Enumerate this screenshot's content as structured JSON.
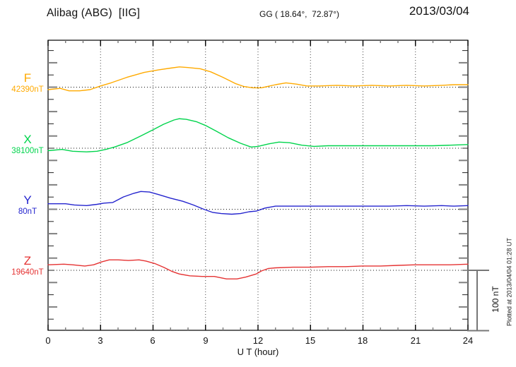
{
  "header": {
    "station_title": "Alibag (ABG)  [IIG]",
    "coords": "GG ( 18.64°,  72.87°)",
    "date": "2013/03/04"
  },
  "axis": {
    "x_tick_labels": [
      "0",
      "3",
      "6",
      "9",
      "12",
      "15",
      "18",
      "21",
      "24"
    ],
    "x_axis_label": "U T (hour)"
  },
  "scale_bar": {
    "label": "100 nT",
    "nT": 100
  },
  "plot_note": "Plotted at 2013/04/04 01:28 UT",
  "chart_data": {
    "type": "line",
    "title": "Alibag (ABG) [IIG] magnetogram",
    "date": "2013/03/04",
    "xlabel": "U T (hour)",
    "x_range": [
      0,
      24
    ],
    "x_major_tick_hours": 3,
    "x_minor_tick_hours": 1,
    "grid": "dotted vertical lines every 3 hours; dotted horizontal baseline per component",
    "legend_position": "left margin, one colored label per trace",
    "scale_bar_nT": 100,
    "offset_unit": "nT relative to component baseline",
    "series": [
      {
        "name": "F",
        "baseline_label": "42390nT",
        "baseline_nT": 42390,
        "color": "#FFAA00",
        "points": [
          [
            0,
            -4
          ],
          [
            0.7,
            -2
          ],
          [
            1.2,
            -6
          ],
          [
            1.8,
            -6
          ],
          [
            2.4,
            -4
          ],
          [
            3,
            2
          ],
          [
            3.6,
            7
          ],
          [
            4.5,
            16
          ],
          [
            5.5,
            24
          ],
          [
            6.3,
            28
          ],
          [
            7,
            31
          ],
          [
            7.5,
            33
          ],
          [
            8,
            32
          ],
          [
            8.7,
            30
          ],
          [
            9.3,
            25
          ],
          [
            10,
            16
          ],
          [
            10.7,
            6
          ],
          [
            11.2,
            1
          ],
          [
            11.7,
            -1
          ],
          [
            12.2,
            -1
          ],
          [
            13,
            4
          ],
          [
            13.6,
            7
          ],
          [
            14.2,
            5
          ],
          [
            14.8,
            2
          ],
          [
            15.5,
            2
          ],
          [
            16.5,
            3
          ],
          [
            17.5,
            2
          ],
          [
            18.5,
            3
          ],
          [
            19.5,
            2
          ],
          [
            20.5,
            3
          ],
          [
            21.5,
            2
          ],
          [
            22.5,
            3
          ],
          [
            23.2,
            4
          ],
          [
            24,
            4
          ]
        ]
      },
      {
        "name": "X",
        "baseline_label": "38100nT",
        "baseline_nT": 38100,
        "color": "#00D44C",
        "points": [
          [
            0,
            -4
          ],
          [
            0.8,
            -2
          ],
          [
            1.4,
            -5
          ],
          [
            2.2,
            -6
          ],
          [
            2.8,
            -5
          ],
          [
            3.3,
            -2
          ],
          [
            3.8,
            2
          ],
          [
            4.5,
            9
          ],
          [
            5.3,
            20
          ],
          [
            6,
            30
          ],
          [
            6.6,
            39
          ],
          [
            7.2,
            46
          ],
          [
            7.5,
            48
          ],
          [
            7.9,
            47
          ],
          [
            8.5,
            43
          ],
          [
            9,
            37
          ],
          [
            9.6,
            28
          ],
          [
            10.3,
            17
          ],
          [
            11,
            8
          ],
          [
            11.6,
            2
          ],
          [
            12,
            3
          ],
          [
            12.6,
            7
          ],
          [
            13.2,
            10
          ],
          [
            13.8,
            9
          ],
          [
            14.5,
            5
          ],
          [
            15.2,
            3
          ],
          [
            16,
            4
          ],
          [
            17,
            4
          ],
          [
            18,
            4
          ],
          [
            19,
            4
          ],
          [
            20,
            4
          ],
          [
            21,
            4
          ],
          [
            22,
            4
          ],
          [
            23,
            5
          ],
          [
            24,
            6
          ]
        ]
      },
      {
        "name": "Y",
        "baseline_label": "80nT",
        "baseline_nT": 80,
        "color": "#2424CE",
        "points": [
          [
            0,
            9
          ],
          [
            1,
            9
          ],
          [
            1.5,
            7
          ],
          [
            2.2,
            6
          ],
          [
            2.8,
            8
          ],
          [
            3.2,
            10
          ],
          [
            3.7,
            11
          ],
          [
            4.3,
            20
          ],
          [
            4.9,
            26
          ],
          [
            5.3,
            29
          ],
          [
            5.8,
            28
          ],
          [
            6.3,
            24
          ],
          [
            7,
            18
          ],
          [
            7.7,
            13
          ],
          [
            8.3,
            7
          ],
          [
            8.9,
            0
          ],
          [
            9.4,
            -5
          ],
          [
            9.9,
            -7
          ],
          [
            10.5,
            -8
          ],
          [
            11,
            -7
          ],
          [
            11.5,
            -4
          ],
          [
            11.9,
            -3
          ],
          [
            12.4,
            2
          ],
          [
            13,
            5
          ],
          [
            13.6,
            5
          ],
          [
            14.5,
            5
          ],
          [
            15.5,
            5
          ],
          [
            16.5,
            5
          ],
          [
            17.5,
            5
          ],
          [
            18.5,
            5
          ],
          [
            19.5,
            5
          ],
          [
            20.5,
            6
          ],
          [
            21.5,
            5
          ],
          [
            22.5,
            6
          ],
          [
            23.2,
            5
          ],
          [
            24,
            6
          ]
        ]
      },
      {
        "name": "Z",
        "baseline_label": "19640nT",
        "baseline_nT": 19640,
        "color": "#E53333",
        "points": [
          [
            0,
            9
          ],
          [
            0.9,
            10
          ],
          [
            1.4,
            9
          ],
          [
            2.1,
            7
          ],
          [
            2.6,
            9
          ],
          [
            3.1,
            14
          ],
          [
            3.5,
            17
          ],
          [
            4,
            17
          ],
          [
            4.6,
            16
          ],
          [
            5.2,
            17
          ],
          [
            5.6,
            15
          ],
          [
            6.1,
            11
          ],
          [
            6.6,
            5
          ],
          [
            7.1,
            -2
          ],
          [
            7.5,
            -6
          ],
          [
            8.1,
            -9
          ],
          [
            8.8,
            -10
          ],
          [
            9.5,
            -10
          ],
          [
            10.2,
            -14
          ],
          [
            10.8,
            -14
          ],
          [
            11.3,
            -11
          ],
          [
            11.9,
            -6
          ],
          [
            12.2,
            -1
          ],
          [
            12.6,
            3
          ],
          [
            13,
            4
          ],
          [
            14,
            5
          ],
          [
            15,
            5
          ],
          [
            16,
            6
          ],
          [
            17,
            6
          ],
          [
            18,
            7
          ],
          [
            19,
            7
          ],
          [
            20,
            8
          ],
          [
            21,
            9
          ],
          [
            22,
            9
          ],
          [
            23,
            9
          ],
          [
            24,
            10
          ]
        ]
      }
    ]
  }
}
